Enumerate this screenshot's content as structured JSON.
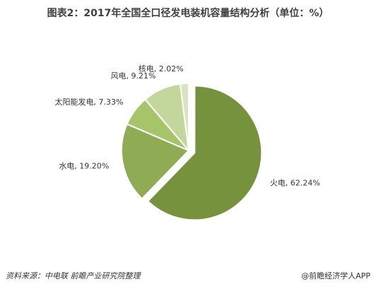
{
  "chart_data": {
    "type": "pie",
    "title": "图表2：2017年全国全口径发电装机容量结构分析（单位：%）",
    "categories": [
      "火电",
      "水电",
      "太阳能发电",
      "风电",
      "核电"
    ],
    "values": [
      62.24,
      19.2,
      7.33,
      9.21,
      2.02
    ],
    "value_labels": [
      "火电, 62.24%",
      "水电, 19.20%",
      "太阳能发电, 7.33%",
      "风电, 9.21%",
      "核电, 2.02%"
    ],
    "colors": [
      "#76923c",
      "#8fac55",
      "#a6c468",
      "#c3d69b",
      "#d7e4bd"
    ],
    "source": "资料来源：中电联 前瞻产业研究院整理",
    "credit": "@前瞻经济学人APP"
  }
}
